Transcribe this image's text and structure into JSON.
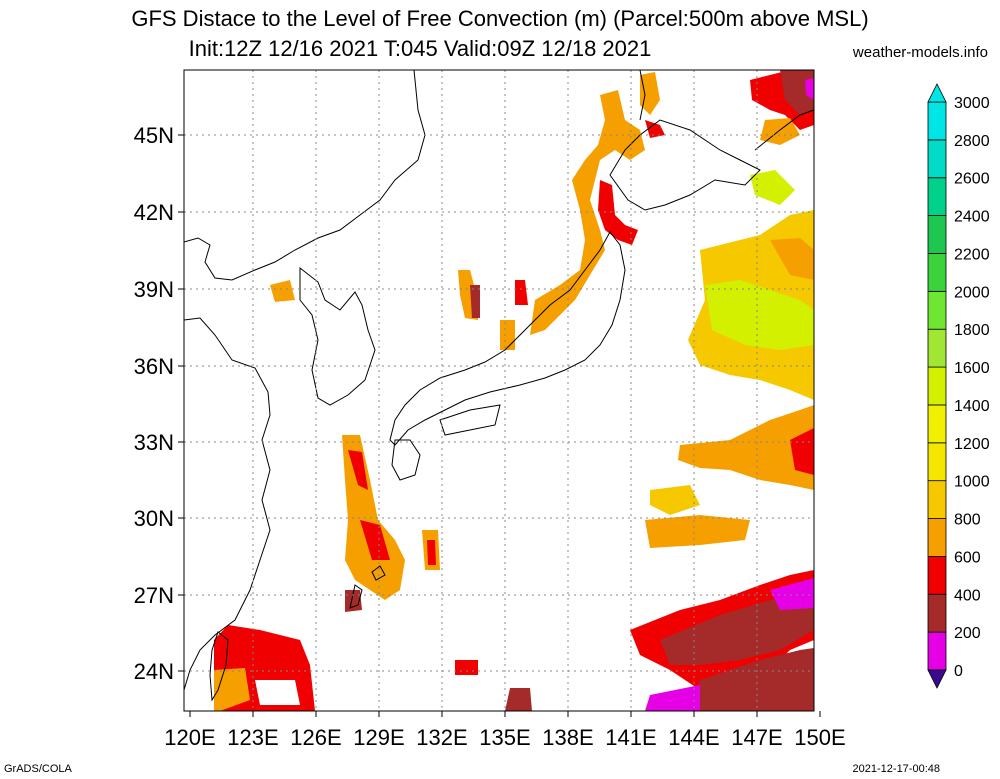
{
  "title_line1": "GFS Distace to the Level of Free Convection (m) (Parcel:500m above MSL)",
  "title_line2": "Init:12Z 12/16 2021 T:045 Valid:09Z 12/18 2021",
  "site": "weather-models.info",
  "credit_left": "GrADS/COLA",
  "credit_right": "2021-12-17-00:48",
  "lat_labels": [
    "45N",
    "42N",
    "39N",
    "36N",
    "33N",
    "30N",
    "27N",
    "24N"
  ],
  "lon_labels": [
    "120E",
    "123E",
    "126E",
    "129E",
    "132E",
    "135E",
    "138E",
    "141E",
    "144E",
    "147E",
    "150E"
  ],
  "colorbar": {
    "labels": [
      "0",
      "200",
      "400",
      "600",
      "800",
      "1000",
      "1200",
      "1400",
      "1600",
      "1800",
      "2000",
      "2200",
      "2400",
      "2600",
      "2800",
      "3000"
    ],
    "colors": [
      "#3b0a8c",
      "#e600e6",
      "#a52a2a",
      "#f00000",
      "#f5a000",
      "#f5c800",
      "#f5e600",
      "#f0f000",
      "#d2f000",
      "#a0e632",
      "#6ee632",
      "#3cd23c",
      "#1ec850",
      "#00d28c",
      "#00dcc8",
      "#00e6e6"
    ]
  }
}
